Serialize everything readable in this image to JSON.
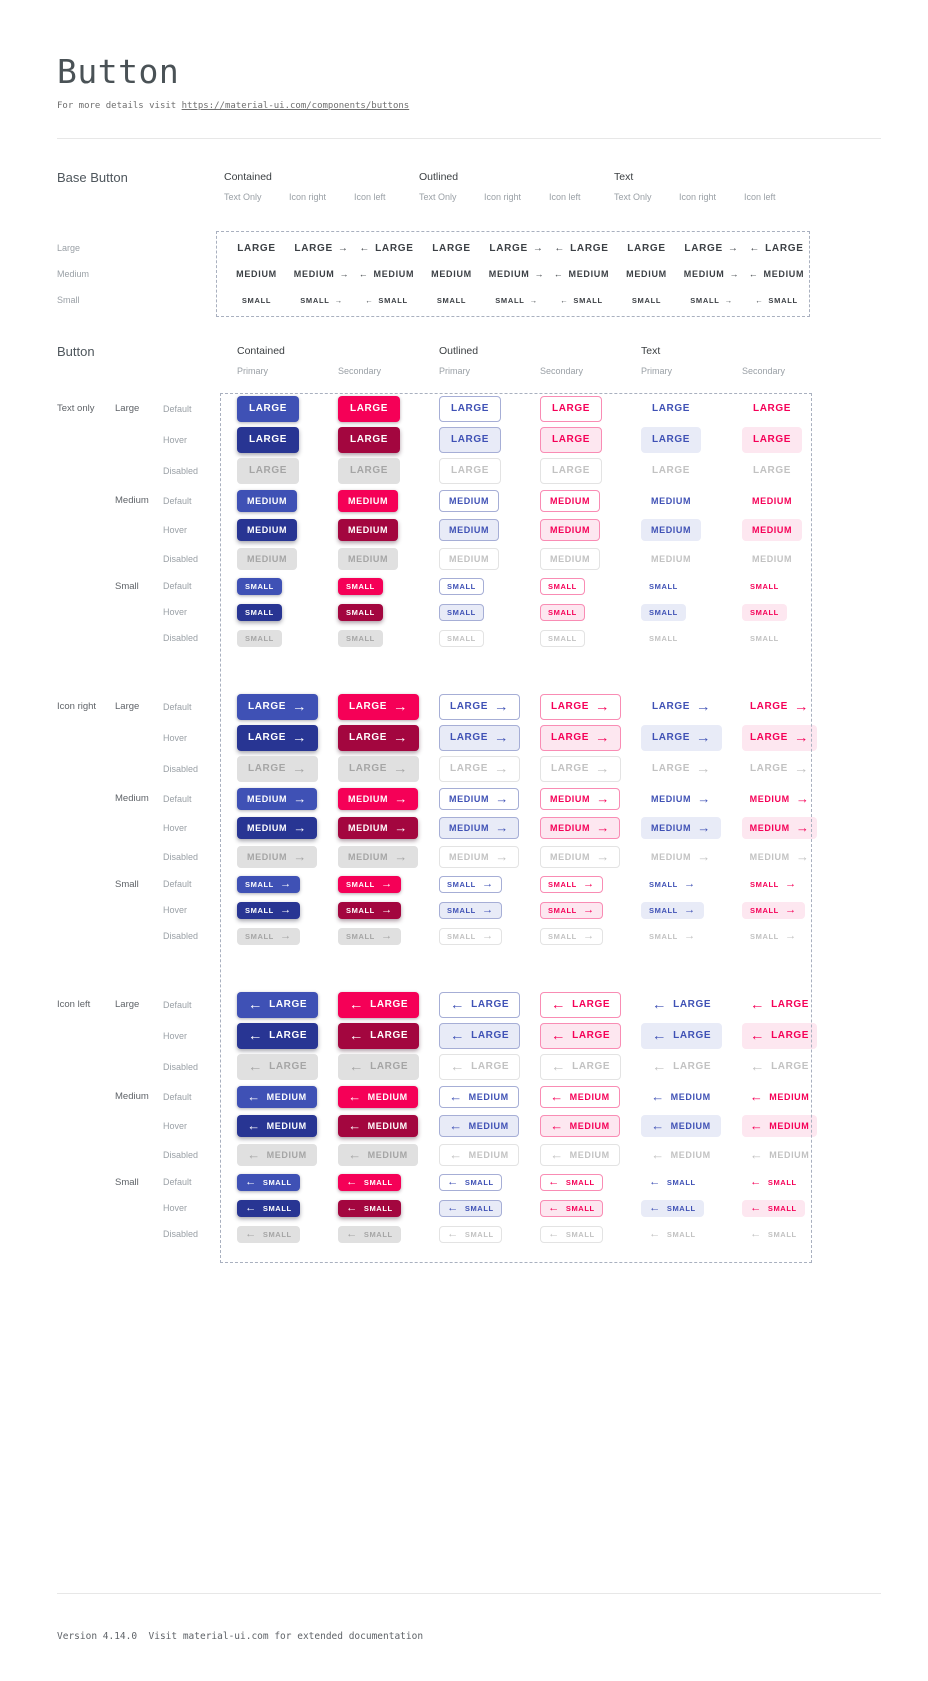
{
  "header": {
    "title": "Button",
    "subtitle_prefix": "For more details visit ",
    "subtitle_link": "https://material-ui.com/components/buttons"
  },
  "base_button": {
    "section_title": "Base Button",
    "column_groups": [
      {
        "label": "Contained"
      },
      {
        "label": "Outlined"
      },
      {
        "label": "Text"
      }
    ],
    "variant_columns": [
      "Text Only",
      "Icon right",
      "Icon left"
    ],
    "rows": [
      {
        "label": "Large",
        "button_text": "LARGE"
      },
      {
        "label": "Medium",
        "button_text": "MEDIUM"
      },
      {
        "label": "Small",
        "button_text": "SMALL"
      }
    ]
  },
  "button_section": {
    "section_title": "Button",
    "column_groups": [
      {
        "label": "Contained",
        "subcolumns": [
          "Primary",
          "Secondary"
        ]
      },
      {
        "label": "Outlined",
        "subcolumns": [
          "Primary",
          "Secondary"
        ]
      },
      {
        "label": "Text",
        "subcolumns": [
          "Primary",
          "Secondary"
        ]
      }
    ],
    "row_groups": [
      {
        "label": "Text only",
        "icon": "none"
      },
      {
        "label": "Icon right",
        "icon": "arrow-right"
      },
      {
        "label": "Icon left",
        "icon": "arrow-left"
      }
    ],
    "sizes": [
      {
        "label": "Large",
        "button_text": "LARGE"
      },
      {
        "label": "Medium",
        "button_text": "MEDIUM"
      },
      {
        "label": "Small",
        "button_text": "SMALL"
      }
    ],
    "states": [
      "Default",
      "Hover",
      "Disabled"
    ]
  },
  "icons": {
    "arrow_right": "→",
    "arrow_left": "←"
  },
  "colors": {
    "primary": "#3f51b5",
    "primary_hover": "#283593",
    "secondary": "#f50057",
    "secondary_hover": "#a3063f",
    "disabled_bg": "#e0e0e0",
    "disabled_text": "#a5a5a5",
    "outlined_primary_border": "#a6aed6",
    "outlined_secondary_border": "#f98cb4",
    "primary_tint": "#e8ebf7",
    "secondary_tint": "#fde7f0",
    "disabled_border": "#e3e3e3",
    "disabled_light_text": "#c2c2c2",
    "dash_border": "#a9b0bf"
  },
  "footer": {
    "text": "Version 4.14.0  Visit material-ui.com for extended documentation"
  }
}
